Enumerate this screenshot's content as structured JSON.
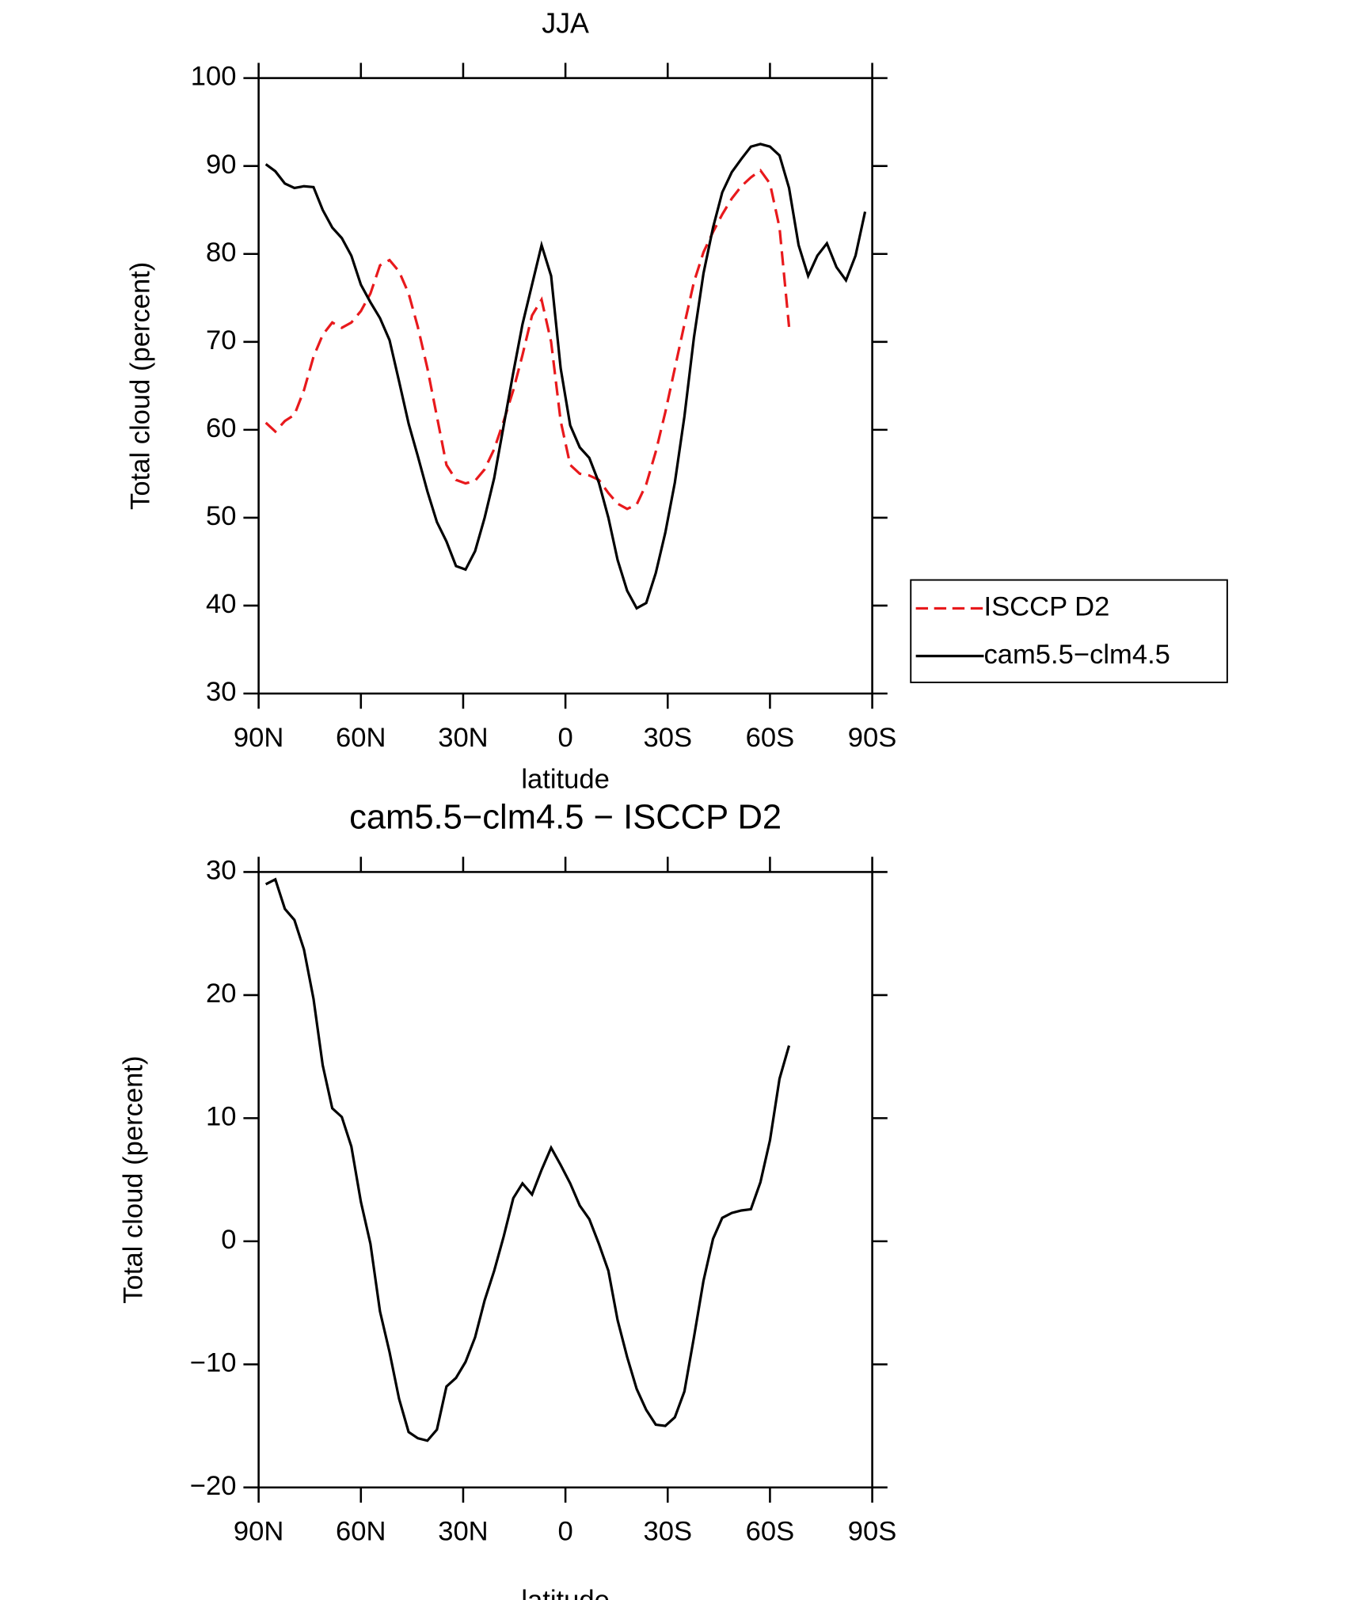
{
  "chart_data": [
    {
      "type": "line",
      "title": "JJA",
      "xlabel": "latitude",
      "ylabel": "Total cloud (percent)",
      "x": [
        87.9,
        85.1,
        82.3,
        79.5,
        76.7,
        73.9,
        71.2,
        68.4,
        65.6,
        62.8,
        60.0,
        57.2,
        54.4,
        51.6,
        48.8,
        46.0,
        43.3,
        40.5,
        37.7,
        34.9,
        32.1,
        29.3,
        26.5,
        23.7,
        20.9,
        18.1,
        15.3,
        12.6,
        9.8,
        7.0,
        4.2,
        1.4,
        -1.4,
        -4.2,
        -7.0,
        -9.8,
        -12.6,
        -15.3,
        -18.1,
        -20.9,
        -23.7,
        -26.5,
        -29.3,
        -32.1,
        -34.9,
        -37.7,
        -40.5,
        -43.3,
        -46.0,
        -48.8,
        -51.6,
        -54.4,
        -57.2,
        -60.0,
        -62.8,
        -65.6,
        -68.4,
        -71.2,
        -73.9,
        -76.7,
        -79.5,
        -82.3,
        -85.1,
        -87.9
      ],
      "series": [
        {
          "name": "ISCCP D2",
          "color": "#e8191c",
          "dash": true,
          "values": [
            60.8,
            59.8,
            61.0,
            61.7,
            64.5,
            68.3,
            70.8,
            72.2,
            71.6,
            72.2,
            73.5,
            75.5,
            78.7,
            79.3,
            78.0,
            75.5,
            71.7,
            67.0,
            61.5,
            56.0,
            54.3,
            53.9,
            54.2,
            55.5,
            57.8,
            61.0,
            64.5,
            68.5,
            73.0,
            74.8,
            70.0,
            61.0,
            56.0,
            55.0,
            54.8,
            54.3,
            52.8,
            51.6,
            51.0,
            51.5,
            53.8,
            57.5,
            62.0,
            67.0,
            72.0,
            76.8,
            80.2,
            82.5,
            84.5,
            86.3,
            87.7,
            88.7,
            89.5,
            88.0,
            83.0,
            71.7,
            null,
            null,
            null,
            null,
            null,
            null,
            null,
            null
          ]
        },
        {
          "name": "cam5.5−clm4.5",
          "color": "#000000",
          "dash": false,
          "values": [
            90.2,
            89.4,
            88.0,
            87.5,
            87.7,
            87.6,
            85.0,
            83.0,
            81.8,
            79.8,
            76.5,
            74.5,
            72.7,
            70.2,
            65.5,
            60.7,
            57.0,
            53.0,
            49.5,
            47.3,
            44.5,
            44.1,
            46.2,
            50.0,
            54.5,
            60.5,
            66.5,
            72.0,
            76.5,
            81.0,
            77.5,
            67.0,
            60.5,
            58.0,
            56.8,
            54.0,
            50.0,
            45.2,
            41.7,
            39.7,
            40.3,
            43.7,
            48.3,
            54.0,
            61.5,
            70.5,
            77.8,
            83.0,
            87.0,
            89.3,
            90.8,
            92.2,
            92.5,
            92.2,
            91.2,
            87.5,
            81.0,
            77.5,
            79.8,
            81.2,
            78.5,
            77.0,
            79.8,
            84.8
          ]
        }
      ],
      "xlim": [
        90,
        -90
      ],
      "xticks": [
        {
          "value": 90,
          "label": "90N"
        },
        {
          "value": 60,
          "label": "60N"
        },
        {
          "value": 30,
          "label": "30N"
        },
        0,
        {
          "value": -30,
          "label": "30S"
        },
        {
          "value": -60,
          "label": "60S"
        },
        {
          "value": -90,
          "label": "90S"
        }
      ],
      "ylim": [
        30,
        100
      ],
      "yticks": [
        30,
        40,
        50,
        60,
        70,
        80,
        90,
        100
      ],
      "legend": "right"
    },
    {
      "type": "line",
      "title": "cam5.5−clm4.5 − ISCCP D2",
      "xlabel": "latitude",
      "ylabel": "Total cloud (percent)",
      "x": [
        87.9,
        85.1,
        82.3,
        79.5,
        76.7,
        73.9,
        71.2,
        68.4,
        65.6,
        62.8,
        60.0,
        57.2,
        54.4,
        51.6,
        48.8,
        46.0,
        43.3,
        40.5,
        37.7,
        34.9,
        32.1,
        29.3,
        26.5,
        23.7,
        20.9,
        18.1,
        15.3,
        12.6,
        9.8,
        7.0,
        4.2,
        1.4,
        -1.4,
        -4.2,
        -7.0,
        -9.8,
        -12.6,
        -15.3,
        -18.1,
        -20.9,
        -23.7,
        -26.5,
        -29.3,
        -32.1,
        -34.9,
        -37.7,
        -40.5,
        -43.3,
        -46.0,
        -48.8,
        -51.6,
        -54.4,
        -57.2,
        -60.0,
        -62.8,
        -65.6,
        -68.4,
        -71.2,
        -73.9,
        -76.7,
        -79.5,
        -82.3,
        -85.1,
        -87.9
      ],
      "series": [
        {
          "color": "#000000",
          "dash": false,
          "values": [
            29.0,
            29.4,
            27.0,
            26.1,
            23.7,
            19.7,
            14.3,
            10.8,
            10.1,
            7.7,
            3.2,
            -0.2,
            -5.7,
            -9.0,
            -12.8,
            -15.5,
            -16.0,
            -16.2,
            -15.3,
            -11.8,
            -11.1,
            -9.8,
            -7.8,
            -4.8,
            -2.4,
            0.4,
            3.5,
            4.7,
            3.8,
            5.8,
            7.6,
            6.2,
            4.7,
            2.9,
            1.8,
            -0.2,
            -2.4,
            -6.4,
            -9.4,
            -12.0,
            -13.7,
            -14.9,
            -15.0,
            -14.3,
            -12.2,
            -7.8,
            -3.2,
            0.2,
            1.9,
            2.3,
            2.5,
            2.6,
            4.8,
            8.2,
            13.2,
            15.9,
            null,
            null,
            null,
            null,
            null,
            null,
            null,
            null
          ]
        }
      ],
      "xlim": [
        90,
        -90
      ],
      "xticks": [
        {
          "value": 90,
          "label": "90N"
        },
        {
          "value": 60,
          "label": "60N"
        },
        {
          "value": 30,
          "label": "30N"
        },
        0,
        {
          "value": -30,
          "label": "30S"
        },
        {
          "value": -60,
          "label": "60S"
        },
        {
          "value": -90,
          "label": "90S"
        }
      ],
      "ylim": [
        -20,
        30
      ],
      "yticks": [
        {
          "value": -20,
          "label": "−20"
        },
        {
          "value": -10,
          "label": "−10"
        },
        0,
        10,
        20,
        30
      ]
    }
  ]
}
